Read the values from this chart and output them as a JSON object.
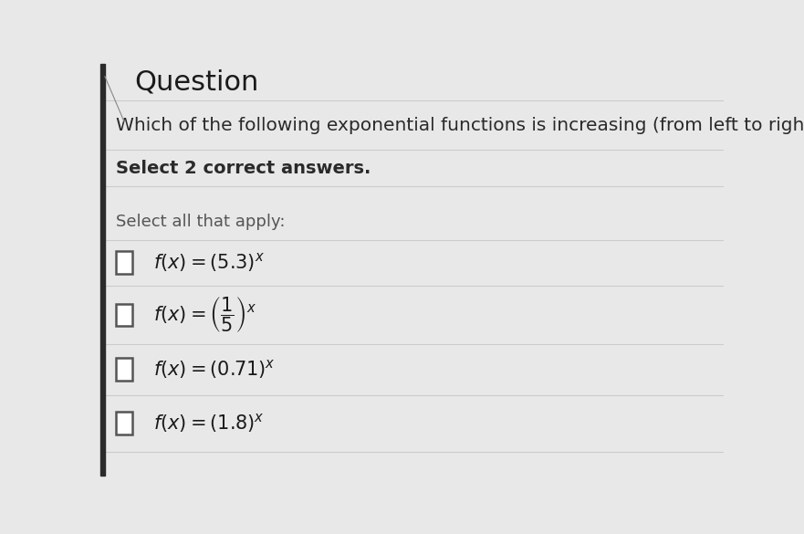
{
  "title": "Question",
  "question_text": "Which of the following exponential functions is increasing (from left to right)?",
  "select_text": "Select 2 correct answers.",
  "select_all_text": "Select all that apply:",
  "bg_color": "#e8e8e8",
  "line_color": "#cccccc",
  "left_bar_color": "#2a2a2a",
  "title_color": "#1a1a1a",
  "question_color": "#2a2a2a",
  "select_color": "#2a2a2a",
  "select_all_color": "#555555",
  "option_color": "#1a1a1a",
  "checkbox_edge": "#555555",
  "title_fontsize": 22,
  "question_fontsize": 14.5,
  "select_fontsize": 14,
  "select_all_fontsize": 13,
  "option_fontsize": 15,
  "option_labels": [
    "f(x) = (5.3)^x",
    "f(x) = (1/5)^x",
    "f(x) = (0.71)^x",
    "f(x) = (1.8)^x"
  ]
}
